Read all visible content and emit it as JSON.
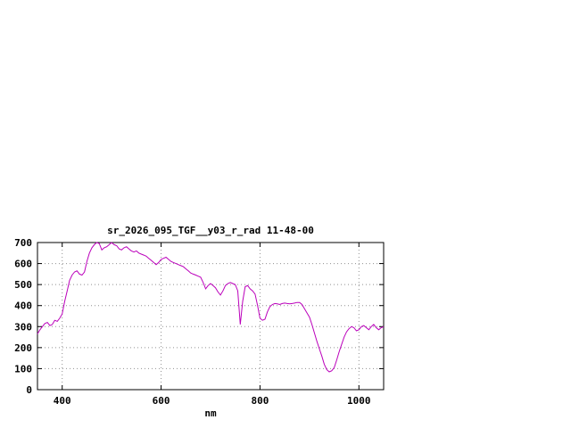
{
  "chart_data": {
    "type": "line",
    "title": "sr_2026_095_TGF__y03_r_rad 11-48-00",
    "xlabel": "nm",
    "ylabel": "",
    "xlim": [
      350,
      1050
    ],
    "ylim": [
      0,
      700
    ],
    "x_ticks": [
      400,
      600,
      800,
      1000
    ],
    "y_ticks": [
      0,
      100,
      200,
      300,
      400,
      500,
      600,
      700
    ],
    "grid": true,
    "legend": "none",
    "line_color": "#bb00bb",
    "grid_color": "#909090",
    "border_color": "#000000",
    "series": [
      {
        "name": "sr_2026_095_TGF__y03_r_rad",
        "x": [
          350,
          355,
          360,
          365,
          370,
          375,
          380,
          385,
          390,
          395,
          400,
          405,
          410,
          415,
          420,
          425,
          430,
          435,
          440,
          445,
          450,
          455,
          460,
          465,
          470,
          475,
          480,
          485,
          490,
          495,
          500,
          505,
          510,
          515,
          520,
          525,
          530,
          535,
          540,
          545,
          550,
          555,
          560,
          565,
          570,
          575,
          580,
          585,
          590,
          595,
          600,
          605,
          610,
          615,
          620,
          625,
          630,
          635,
          640,
          645,
          650,
          655,
          660,
          665,
          670,
          675,
          680,
          685,
          690,
          695,
          700,
          705,
          710,
          715,
          720,
          725,
          730,
          735,
          740,
          745,
          750,
          755,
          760,
          765,
          770,
          775,
          780,
          785,
          790,
          795,
          800,
          805,
          810,
          815,
          820,
          825,
          830,
          835,
          840,
          845,
          850,
          855,
          860,
          865,
          870,
          875,
          880,
          885,
          890,
          895,
          900,
          905,
          910,
          915,
          920,
          925,
          930,
          935,
          940,
          945,
          950,
          955,
          960,
          965,
          970,
          975,
          980,
          985,
          990,
          995,
          1000,
          1005,
          1010,
          1015,
          1020,
          1025,
          1030,
          1035,
          1040,
          1045,
          1050
        ],
        "y": [
          265,
          285,
          300,
          315,
          320,
          305,
          310,
          330,
          325,
          340,
          360,
          420,
          470,
          520,
          545,
          560,
          565,
          550,
          545,
          560,
          610,
          650,
          675,
          690,
          700,
          695,
          665,
          675,
          680,
          690,
          700,
          690,
          685,
          670,
          665,
          675,
          680,
          670,
          660,
          655,
          660,
          650,
          645,
          640,
          635,
          625,
          615,
          605,
          595,
          605,
          620,
          625,
          630,
          620,
          610,
          605,
          600,
          595,
          590,
          585,
          575,
          565,
          555,
          550,
          545,
          540,
          535,
          510,
          480,
          495,
          505,
          495,
          485,
          465,
          450,
          470,
          495,
          505,
          510,
          505,
          500,
          470,
          310,
          420,
          490,
          495,
          480,
          470,
          455,
          400,
          340,
          330,
          335,
          370,
          395,
          405,
          410,
          408,
          405,
          410,
          412,
          410,
          408,
          410,
          412,
          415,
          415,
          405,
          385,
          365,
          345,
          310,
          270,
          230,
          195,
          160,
          120,
          95,
          85,
          90,
          105,
          140,
          180,
          215,
          250,
          275,
          290,
          300,
          295,
          280,
          285,
          300,
          305,
          295,
          285,
          300,
          310,
          295,
          285,
          295,
          300
        ]
      }
    ]
  }
}
